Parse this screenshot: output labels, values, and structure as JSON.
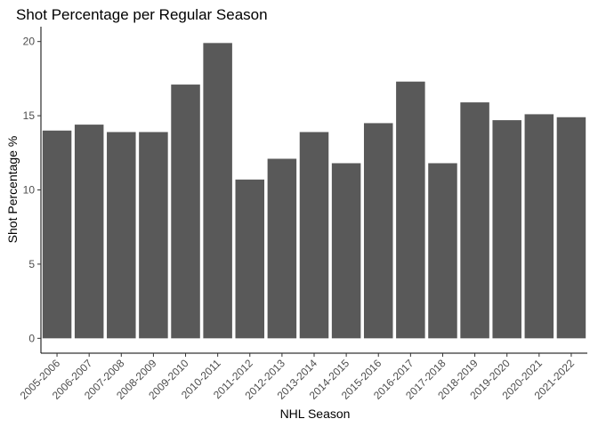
{
  "chart_data": {
    "type": "bar",
    "title": "Shot Percentage per Regular Season",
    "xlabel": "NHL Season",
    "ylabel": "Shot Percentage %",
    "categories": [
      "2005-2006",
      "2006-2007",
      "2007-2008",
      "2008-2009",
      "2009-2010",
      "2010-2011",
      "2011-2012",
      "2012-2013",
      "2013-2014",
      "2014-2015",
      "2015-2016",
      "2016-2017",
      "2017-2018",
      "2018-2019",
      "2019-2020",
      "2020-2021",
      "2021-2022"
    ],
    "values": [
      14.0,
      14.4,
      13.9,
      13.9,
      17.1,
      19.9,
      10.7,
      12.1,
      13.9,
      11.8,
      14.5,
      17.3,
      11.8,
      15.9,
      14.7,
      15.1,
      14.9
    ],
    "ylim": [
      -1,
      21
    ],
    "yticks": [
      0,
      5,
      10,
      15,
      20
    ],
    "grid": false,
    "bar_color": "#595959"
  }
}
